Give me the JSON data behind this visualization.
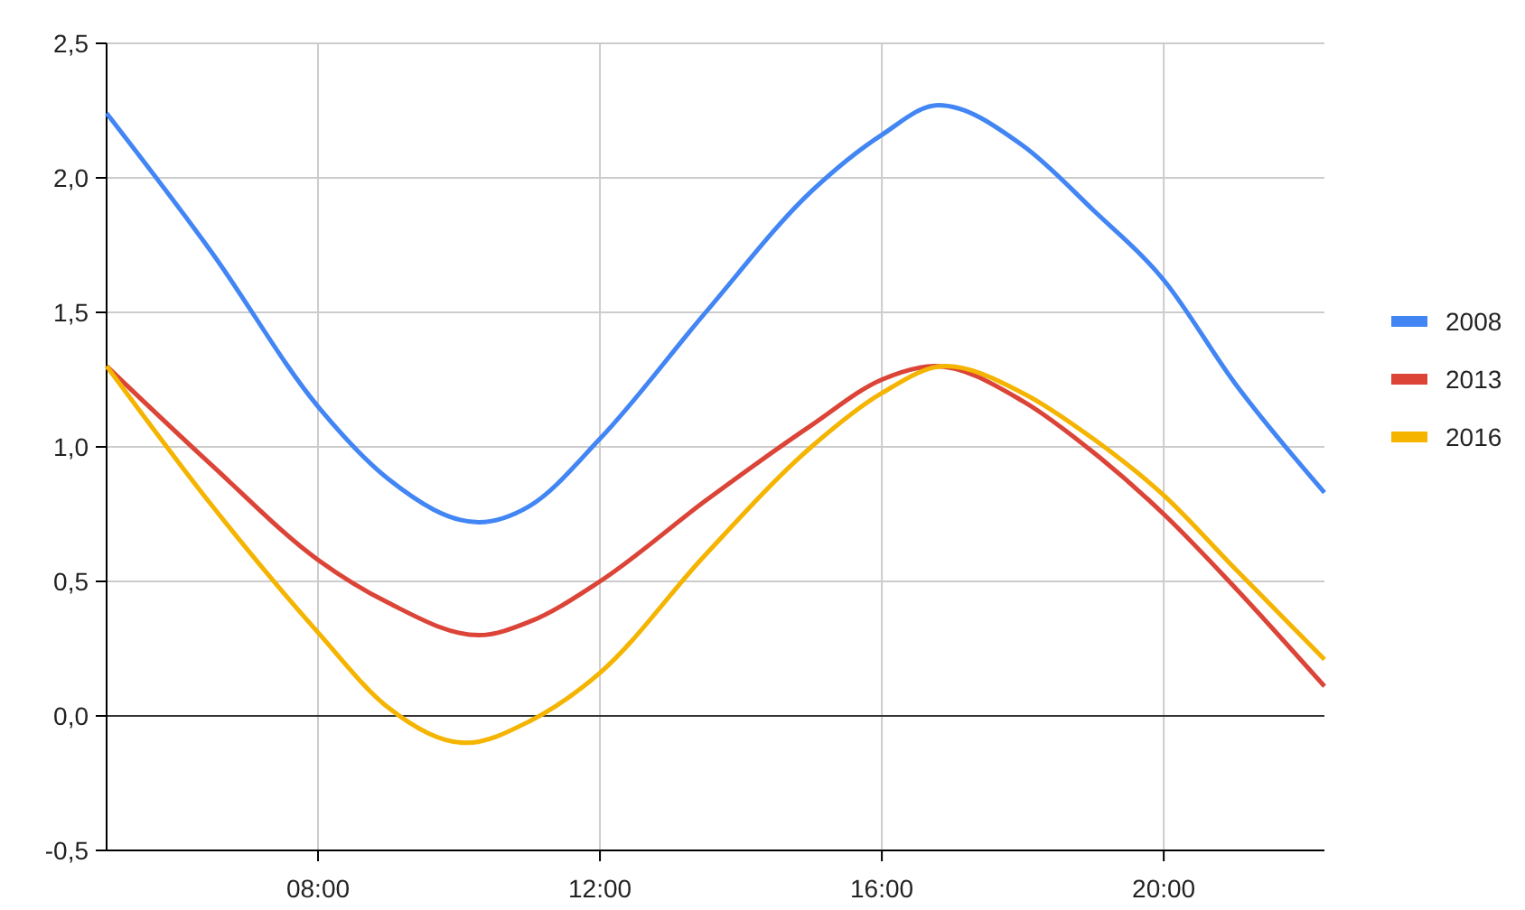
{
  "chart_data": {
    "type": "line",
    "x": [
      5,
      6.5,
      8,
      9,
      10.28,
      11,
      12,
      13.5,
      15,
      16,
      16.8,
      18,
      19,
      20,
      21,
      22.28
    ],
    "series": [
      {
        "name": "2008",
        "color": "#4285f4",
        "values": [
          2.24,
          1.72,
          1.15,
          0.88,
          0.72,
          0.78,
          1.03,
          1.5,
          1.95,
          2.16,
          2.27,
          2.12,
          1.88,
          1.62,
          1.24,
          0.83
        ]
      },
      {
        "name": "2013",
        "color": "#db4437",
        "x": [
          5,
          6.5,
          8,
          9,
          10.28,
          11,
          12,
          13.5,
          15,
          16,
          16.75,
          18,
          19,
          20,
          21,
          22.28
        ],
        "values": [
          1.3,
          0.93,
          0.58,
          0.42,
          0.3,
          0.35,
          0.5,
          0.8,
          1.08,
          1.25,
          1.3,
          1.17,
          0.98,
          0.75,
          0.48,
          0.11
        ]
      },
      {
        "name": "2016",
        "color": "#f4b400",
        "x": [
          5,
          6.5,
          8,
          9,
          10.1,
          11,
          12,
          13.5,
          15,
          16,
          16.9,
          18,
          19,
          20,
          21,
          22.28
        ],
        "values": [
          1.3,
          0.78,
          0.31,
          0.03,
          -0.1,
          -0.02,
          0.16,
          0.6,
          1.0,
          1.2,
          1.3,
          1.2,
          1.03,
          0.82,
          0.55,
          0.21
        ]
      }
    ],
    "xlim": [
      5,
      22.28
    ],
    "xticks": [
      {
        "value": 8,
        "label": "08:00"
      },
      {
        "value": 12,
        "label": "12:00"
      },
      {
        "value": 16,
        "label": "16:00"
      },
      {
        "value": 20,
        "label": "20:00"
      }
    ],
    "ylim": [
      -0.5,
      2.5
    ],
    "yticks": [
      {
        "value": -0.5,
        "label": "-0,5"
      },
      {
        "value": 0,
        "label": "0,0"
      },
      {
        "value": 0.5,
        "label": "0,5"
      },
      {
        "value": 1,
        "label": "1,0"
      },
      {
        "value": 1.5,
        "label": "1,5"
      },
      {
        "value": 2,
        "label": "2,0"
      },
      {
        "value": 2.5,
        "label": "2,5"
      }
    ],
    "grid": true,
    "legend": "right",
    "marker": "none",
    "line_style": "solid"
  }
}
